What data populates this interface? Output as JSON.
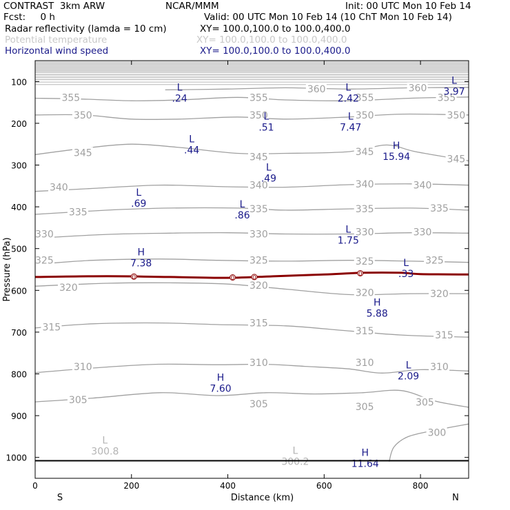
{
  "header": {
    "model": "CONTRAST  3km ARW",
    "center": "NCAR/MMM",
    "init": "Init: 00 UTC Mon 10 Feb 14",
    "fcst": "Fcst:     0 h",
    "valid": "Valid: 00 UTC Mon 10 Feb 14 (10 ChT Mon 10 Feb 14)",
    "field1": "Radar reflectivity (lamda = 10 cm)",
    "xs1": "XY= 100.0,100.0 to 100.0,400.0",
    "field2": "Potential temperature",
    "xs2": "XY= 100.0,100.0 to 100.0,400.0",
    "field3": "Horizontal wind speed",
    "xs3": "XY= 100.0,100.0 to 100.0,400.0"
  },
  "colors": {
    "theta": "#a0a0a0",
    "wind": "#1a1a8a",
    "radar": "#8b0000",
    "axis": "#000000"
  },
  "chart_data": {
    "type": "line",
    "title": "Cross section: Radar reflectivity, Potential temperature, Horizontal wind speed",
    "xlabel": "Distance (km)",
    "ylabel": "Pressure (hPa)",
    "xlim": [
      0,
      900
    ],
    "ylim": [
      1050,
      50
    ],
    "xticks": [
      0,
      200,
      400,
      600,
      800
    ],
    "yticks": [
      100,
      200,
      300,
      400,
      500,
      600,
      700,
      800,
      900,
      1000
    ],
    "end_labels": {
      "left": "S",
      "right": "N"
    },
    "theta_contours": [
      {
        "level": 300,
        "points": [
          [
            735,
            1010
          ],
          [
            745,
            975
          ],
          [
            775,
            950
          ],
          [
            830,
            935
          ],
          [
            900,
            920
          ]
        ],
        "labels": [
          [
            815,
            940
          ]
        ]
      },
      {
        "level": 305,
        "points": [
          [
            0,
            867
          ],
          [
            120,
            858
          ],
          [
            260,
            845
          ],
          [
            380,
            852
          ],
          [
            480,
            845
          ],
          [
            580,
            848
          ],
          [
            680,
            845
          ],
          [
            760,
            840
          ],
          [
            830,
            865
          ],
          [
            900,
            880
          ]
        ],
        "labels": [
          [
            70,
            862
          ],
          [
            445,
            872
          ],
          [
            665,
            878
          ],
          [
            790,
            868
          ]
        ]
      },
      {
        "level": 310,
        "points": [
          [
            0,
            797
          ],
          [
            120,
            786
          ],
          [
            250,
            777
          ],
          [
            380,
            778
          ],
          [
            480,
            777
          ],
          [
            560,
            782
          ],
          [
            650,
            788
          ],
          [
            720,
            798
          ],
          [
            800,
            790
          ],
          [
            900,
            793
          ]
        ],
        "labels": [
          [
            80,
            783
          ],
          [
            445,
            773
          ],
          [
            665,
            773
          ],
          [
            820,
            783
          ]
        ]
      },
      {
        "level": 315,
        "points": [
          [
            0,
            690
          ],
          [
            120,
            680
          ],
          [
            260,
            678
          ],
          [
            380,
            682
          ],
          [
            520,
            685
          ],
          [
            650,
            697
          ],
          [
            760,
            707
          ],
          [
            900,
            712
          ]
        ],
        "labels": [
          [
            15,
            688
          ],
          [
            445,
            678
          ],
          [
            665,
            697
          ],
          [
            830,
            707
          ]
        ]
      },
      {
        "level": 320,
        "points": [
          [
            0,
            590
          ],
          [
            150,
            583
          ],
          [
            280,
            582
          ],
          [
            400,
            585
          ],
          [
            520,
            597
          ],
          [
            650,
            610
          ],
          [
            780,
            608
          ],
          [
            900,
            608
          ]
        ],
        "labels": [
          [
            50,
            593
          ],
          [
            445,
            588
          ],
          [
            665,
            605
          ],
          [
            820,
            608
          ]
        ]
      },
      {
        "level": 325,
        "points": [
          [
            0,
            538
          ],
          [
            120,
            528
          ],
          [
            260,
            525
          ],
          [
            380,
            528
          ],
          [
            520,
            530
          ],
          [
            650,
            528
          ],
          [
            780,
            530
          ],
          [
            900,
            533
          ]
        ],
        "labels": [
          [
            0,
            528
          ],
          [
            445,
            528
          ],
          [
            665,
            530
          ],
          [
            810,
            528
          ]
        ]
      },
      {
        "level": 330,
        "points": [
          [
            0,
            475
          ],
          [
            150,
            466
          ],
          [
            280,
            463
          ],
          [
            400,
            462
          ],
          [
            520,
            465
          ],
          [
            650,
            465
          ],
          [
            780,
            462
          ],
          [
            900,
            463
          ]
        ],
        "labels": [
          [
            0,
            465
          ],
          [
            445,
            465
          ],
          [
            665,
            460
          ],
          [
            785,
            460
          ]
        ]
      },
      {
        "level": 335,
        "points": [
          [
            0,
            418
          ],
          [
            150,
            408
          ],
          [
            280,
            403
          ],
          [
            420,
            403
          ],
          [
            520,
            408
          ],
          [
            650,
            405
          ],
          [
            780,
            403
          ],
          [
            900,
            408
          ]
        ],
        "labels": [
          [
            70,
            412
          ],
          [
            445,
            405
          ],
          [
            665,
            405
          ],
          [
            820,
            403
          ]
        ]
      },
      {
        "level": 340,
        "points": [
          [
            0,
            363
          ],
          [
            120,
            356
          ],
          [
            260,
            348
          ],
          [
            400,
            352
          ],
          [
            520,
            353
          ],
          [
            650,
            347
          ],
          [
            780,
            345
          ],
          [
            900,
            348
          ]
        ],
        "labels": [
          [
            30,
            353
          ],
          [
            445,
            348
          ],
          [
            665,
            345
          ],
          [
            785,
            348
          ]
        ]
      },
      {
        "level": 345,
        "points": [
          [
            0,
            275
          ],
          [
            100,
            260
          ],
          [
            200,
            250
          ],
          [
            300,
            258
          ],
          [
            420,
            272
          ],
          [
            520,
            272
          ],
          [
            650,
            268
          ],
          [
            730,
            252
          ],
          [
            790,
            268
          ],
          [
            900,
            290
          ]
        ],
        "labels": [
          [
            80,
            270
          ],
          [
            445,
            280
          ],
          [
            665,
            268
          ],
          [
            855,
            285
          ]
        ]
      },
      {
        "level": 350,
        "points": [
          [
            0,
            180
          ],
          [
            100,
            180
          ],
          [
            200,
            190
          ],
          [
            300,
            190
          ],
          [
            420,
            185
          ],
          [
            520,
            190
          ],
          [
            650,
            185
          ],
          [
            760,
            178
          ],
          [
            900,
            180
          ]
        ],
        "labels": [
          [
            80,
            180
          ],
          [
            445,
            180
          ],
          [
            665,
            180
          ],
          [
            855,
            180
          ]
        ]
      },
      {
        "level": 355,
        "points": [
          [
            0,
            140
          ],
          [
            100,
            142
          ],
          [
            200,
            146
          ],
          [
            300,
            144
          ],
          [
            420,
            138
          ],
          [
            520,
            144
          ],
          [
            650,
            146
          ],
          [
            780,
            140
          ],
          [
            900,
            137
          ]
        ],
        "labels": [
          [
            55,
            138
          ],
          [
            445,
            138
          ],
          [
            665,
            138
          ],
          [
            835,
            138
          ]
        ]
      },
      {
        "level": 360,
        "points": [
          [
            270,
            120
          ],
          [
            400,
            118
          ],
          [
            520,
            115
          ],
          [
            650,
            118
          ],
          [
            780,
            115
          ],
          [
            900,
            114
          ]
        ],
        "labels": [
          [
            565,
            118
          ],
          [
            775,
            115
          ]
        ]
      }
    ],
    "radar_contour": {
      "level": 0,
      "points": [
        [
          0,
          568
        ],
        [
          150,
          566
        ],
        [
          280,
          568
        ],
        [
          400,
          570
        ],
        [
          500,
          566
        ],
        [
          600,
          562
        ],
        [
          680,
          558
        ],
        [
          760,
          558
        ],
        [
          800,
          561
        ],
        [
          900,
          562
        ]
      ],
      "labels": [
        [
          205,
          567
        ],
        [
          410,
          569
        ],
        [
          455,
          568
        ],
        [
          675,
          559
        ]
      ]
    },
    "wind_extrema": [
      {
        "type": "L",
        "value": ".24",
        "x": 300,
        "p": 128
      },
      {
        "type": "L",
        "value": "2.42",
        "x": 650,
        "p": 128
      },
      {
        "type": "L",
        "value": "3.97",
        "x": 870,
        "p": 112
      },
      {
        "type": "L",
        "value": ".51",
        "x": 480,
        "p": 198
      },
      {
        "type": "L",
        "value": "7.47",
        "x": 655,
        "p": 198
      },
      {
        "type": "L",
        "value": ".44",
        "x": 325,
        "p": 252
      },
      {
        "type": "H",
        "value": "15.94",
        "x": 750,
        "p": 268
      },
      {
        "type": "L",
        "value": ".49",
        "x": 485,
        "p": 320
      },
      {
        "type": "L",
        "value": ".69",
        "x": 215,
        "p": 380
      },
      {
        "type": "L",
        "value": ".86",
        "x": 430,
        "p": 408
      },
      {
        "type": "L",
        "value": "1.75",
        "x": 650,
        "p": 468
      },
      {
        "type": "H",
        "value": "7.38",
        "x": 220,
        "p": 523
      },
      {
        "type": "L",
        "value": ".33",
        "x": 770,
        "p": 548
      },
      {
        "type": "H",
        "value": "5.88",
        "x": 710,
        "p": 643
      },
      {
        "type": "L",
        "value": "2.09",
        "x": 775,
        "p": 793
      },
      {
        "type": "H",
        "value": "7.60",
        "x": 385,
        "p": 823
      },
      {
        "type": "H",
        "value": "11.64",
        "x": 685,
        "p": 1003
      }
    ],
    "theta_extrema": [
      {
        "type": "L",
        "value": "300.8",
        "x": 145,
        "p": 973
      },
      {
        "type": "L",
        "value": "300.2",
        "x": 540,
        "p": 998
      }
    ],
    "surface_pressure": 1008,
    "top_band": [
      50,
      95
    ]
  }
}
